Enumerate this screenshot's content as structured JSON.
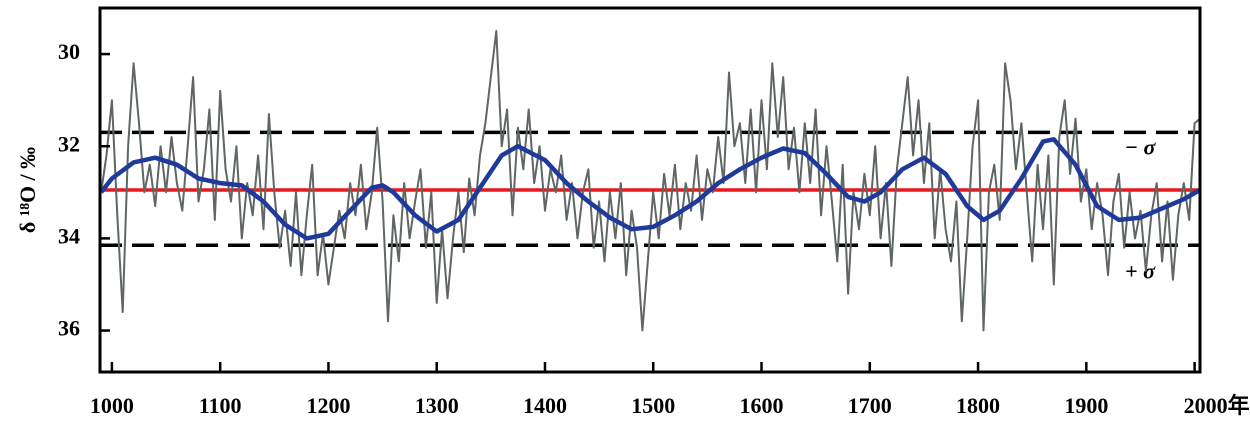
{
  "chart_data": {
    "type": "line",
    "ylabel": "δ ¹⁸O / ‰",
    "xlim": [
      989,
      2005
    ],
    "ylim": [
      29,
      36.9
    ],
    "y_inverted": true,
    "xticks": [
      1000,
      1100,
      1200,
      1300,
      1400,
      1500,
      1600,
      1700,
      1800,
      1900,
      {
        "value": 2000,
        "label": "2000年"
      }
    ],
    "yticks": [
      30,
      32,
      34,
      36
    ],
    "reference_lines": [
      {
        "value": 32.95,
        "color": "#e8191d",
        "style": "solid"
      },
      {
        "value": 31.7,
        "color": "#000000",
        "style": "dashed",
        "label": "− σ"
      },
      {
        "value": 34.15,
        "color": "#000000",
        "style": "dashed",
        "label": "+ σ"
      }
    ],
    "series": [
      {
        "color": "#5f6663",
        "x": [
          990,
          995,
          1000,
          1005,
          1010,
          1015,
          1020,
          1025,
          1030,
          1035,
          1040,
          1045,
          1050,
          1055,
          1060,
          1065,
          1070,
          1075,
          1080,
          1085,
          1090,
          1095,
          1100,
          1105,
          1110,
          1115,
          1120,
          1125,
          1130,
          1135,
          1140,
          1145,
          1150,
          1155,
          1160,
          1165,
          1170,
          1175,
          1180,
          1185,
          1190,
          1195,
          1200,
          1205,
          1210,
          1215,
          1220,
          1225,
          1230,
          1235,
          1240,
          1245,
          1250,
          1255,
          1260,
          1265,
          1270,
          1275,
          1280,
          1285,
          1290,
          1295,
          1300,
          1305,
          1310,
          1315,
          1320,
          1325,
          1330,
          1335,
          1340,
          1345,
          1350,
          1355,
          1360,
          1365,
          1370,
          1375,
          1380,
          1385,
          1390,
          1395,
          1400,
          1405,
          1410,
          1415,
          1420,
          1425,
          1430,
          1435,
          1440,
          1445,
          1450,
          1455,
          1460,
          1465,
          1470,
          1475,
          1480,
          1485,
          1490,
          1495,
          1500,
          1505,
          1510,
          1515,
          1520,
          1525,
          1530,
          1535,
          1540,
          1545,
          1550,
          1555,
          1560,
          1565,
          1570,
          1575,
          1580,
          1585,
          1590,
          1595,
          1600,
          1605,
          1610,
          1615,
          1620,
          1625,
          1630,
          1635,
          1640,
          1645,
          1650,
          1655,
          1660,
          1665,
          1670,
          1675,
          1680,
          1685,
          1690,
          1695,
          1700,
          1705,
          1710,
          1715,
          1720,
          1725,
          1730,
          1735,
          1740,
          1745,
          1750,
          1755,
          1760,
          1765,
          1770,
          1775,
          1780,
          1785,
          1790,
          1795,
          1800,
          1805,
          1810,
          1815,
          1820,
          1825,
          1830,
          1835,
          1840,
          1845,
          1850,
          1855,
          1860,
          1865,
          1870,
          1875,
          1880,
          1885,
          1890,
          1895,
          1900,
          1905,
          1910,
          1915,
          1920,
          1925,
          1930,
          1935,
          1940,
          1945,
          1950,
          1955,
          1960,
          1965,
          1970,
          1975,
          1980,
          1985,
          1990,
          1995,
          2000,
          2005
        ],
        "values": [
          33.0,
          32.2,
          31.0,
          33.5,
          35.6,
          32.0,
          30.2,
          31.5,
          33.0,
          32.4,
          33.3,
          32.0,
          33.0,
          31.8,
          32.8,
          33.4,
          32.0,
          30.5,
          33.2,
          32.5,
          31.2,
          33.6,
          30.8,
          32.5,
          33.2,
          32.0,
          34.0,
          32.8,
          33.5,
          32.2,
          33.8,
          31.3,
          33.0,
          34.2,
          33.4,
          34.6,
          33.0,
          34.8,
          33.5,
          32.4,
          34.8,
          33.9,
          35.0,
          34.2,
          33.4,
          34.0,
          32.8,
          33.5,
          32.4,
          33.8,
          33.0,
          31.6,
          33.2,
          35.8,
          33.5,
          34.5,
          32.8,
          34.0,
          33.2,
          32.5,
          34.2,
          33.0,
          35.4,
          33.8,
          35.3,
          34.0,
          33.0,
          34.3,
          32.7,
          33.5,
          32.2,
          31.5,
          30.5,
          29.5,
          32.0,
          31.2,
          33.5,
          31.6,
          32.5,
          31.2,
          32.8,
          32.0,
          33.4,
          32.5,
          33.0,
          32.2,
          33.6,
          32.8,
          34.0,
          33.0,
          32.5,
          34.2,
          33.2,
          34.5,
          33.0,
          34.0,
          32.8,
          34.8,
          33.4,
          34.2,
          36.0,
          34.5,
          33.0,
          34.0,
          32.6,
          33.5,
          32.4,
          33.8,
          32.8,
          33.4,
          32.2,
          33.6,
          32.5,
          33.0,
          31.8,
          32.8,
          30.4,
          32.0,
          31.5,
          32.8,
          31.2,
          33.0,
          31.0,
          32.5,
          30.2,
          31.8,
          30.5,
          32.5,
          31.6,
          33.0,
          31.5,
          32.8,
          31.2,
          33.5,
          32.0,
          33.2,
          34.5,
          32.4,
          35.2,
          33.0,
          33.8,
          32.6,
          33.5,
          32.0,
          34.0,
          32.8,
          34.6,
          32.5,
          31.5,
          30.5,
          32.2,
          31.0,
          32.8,
          31.5,
          34.0,
          32.5,
          33.8,
          34.5,
          33.2,
          35.8,
          34.0,
          32.0,
          31.0,
          36.0,
          33.0,
          32.4,
          33.6,
          30.2,
          31.0,
          32.5,
          31.5,
          33.0,
          34.5,
          32.4,
          33.8,
          32.2,
          35.0,
          31.8,
          31.0,
          32.6,
          31.4,
          33.2,
          32.5,
          33.8,
          32.8,
          33.5,
          34.8,
          33.2,
          32.6,
          34.2,
          33.0,
          34.0,
          33.4,
          34.7,
          33.5,
          32.8,
          34.5,
          33.2,
          34.9,
          33.5,
          32.8,
          33.6,
          31.5,
          31.4
        ]
      },
      {
        "color": "#1f3a9a",
        "x": [
          990,
          1000,
          1020,
          1040,
          1060,
          1080,
          1100,
          1120,
          1140,
          1160,
          1180,
          1200,
          1220,
          1240,
          1250,
          1260,
          1280,
          1300,
          1320,
          1340,
          1360,
          1375,
          1400,
          1420,
          1440,
          1460,
          1480,
          1500,
          1520,
          1540,
          1560,
          1580,
          1600,
          1620,
          1640,
          1660,
          1680,
          1695,
          1710,
          1730,
          1750,
          1770,
          1790,
          1805,
          1820,
          1840,
          1860,
          1870,
          1890,
          1910,
          1930,
          1950,
          1970,
          1990,
          2005
        ],
        "values": [
          33.0,
          32.7,
          32.35,
          32.25,
          32.4,
          32.7,
          32.8,
          32.85,
          33.2,
          33.7,
          34.0,
          33.9,
          33.4,
          32.9,
          32.85,
          33.0,
          33.5,
          33.85,
          33.6,
          32.9,
          32.2,
          32.0,
          32.3,
          32.8,
          33.2,
          33.55,
          33.8,
          33.75,
          33.5,
          33.2,
          32.8,
          32.5,
          32.25,
          32.05,
          32.15,
          32.6,
          33.1,
          33.2,
          33.0,
          32.5,
          32.25,
          32.6,
          33.3,
          33.6,
          33.4,
          32.7,
          31.9,
          31.85,
          32.4,
          33.3,
          33.6,
          33.55,
          33.35,
          33.15,
          32.95
        ]
      }
    ]
  }
}
